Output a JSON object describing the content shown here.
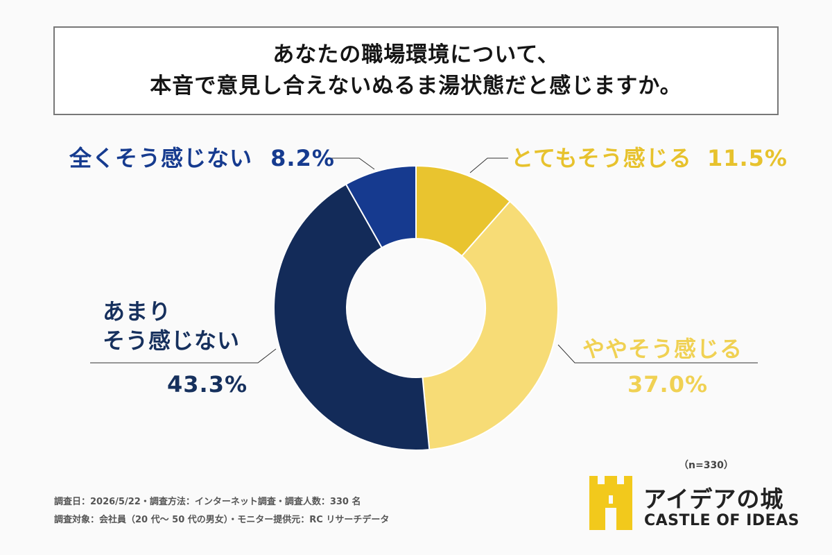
{
  "title": {
    "line1": "あなたの職場環境について、",
    "line2": "本音で意見し合えないぬるま湯状態だと感じますか。"
  },
  "chart_data": {
    "type": "pie",
    "donut": true,
    "slices": [
      {
        "label": "とてもそう感じる",
        "value": 11.5,
        "value_text": "11.5%",
        "color": "#e9c42f"
      },
      {
        "label": "ややそう感じる",
        "value": 37.0,
        "value_text": "37.0%",
        "color": "#f7dc76"
      },
      {
        "label": "あまりそう感じない",
        "value": 43.3,
        "value_text": "43.3%",
        "color": "#132b59"
      },
      {
        "label": "全くそう感じない",
        "value": 8.2,
        "value_text": "8.2%",
        "color": "#163a8f"
      }
    ]
  },
  "labels": {
    "strong_yes": {
      "text": "とてもそう感じる",
      "value": "11.5%"
    },
    "somewhat_yes": {
      "text": "ややそう感じる",
      "value": "37.0%"
    },
    "not_much": {
      "line1": "あまり",
      "line2": "そう感じない",
      "value": "43.3%"
    },
    "not_at_all": {
      "text": "全くそう感じない",
      "value": "8.2%"
    }
  },
  "sample_size": "（n=330）",
  "footer": {
    "line1": "調査日：2026/5/22・調査方法：インターネット調査・調査人数：330 名",
    "line2": "調査対象：会社員（20 代〜 50 代の男女）・モニター提供元：RC リサーチデータ"
  },
  "logo": {
    "name_jp": "アイデアの城",
    "name_en": "CASTLE OF IDEAS",
    "color": "#f2c91c"
  }
}
